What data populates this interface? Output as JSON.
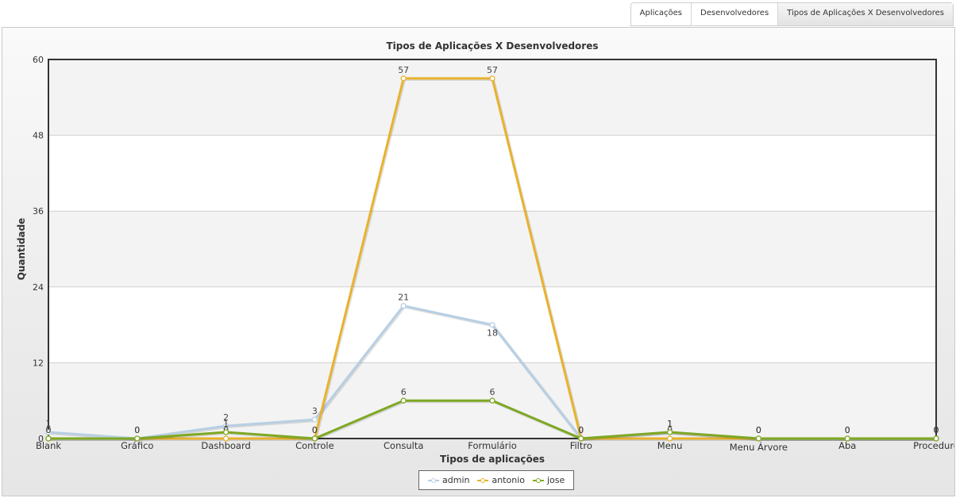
{
  "tabs": [
    {
      "label": "Aplicações",
      "active": false
    },
    {
      "label": "Desenvolvedores",
      "active": false
    },
    {
      "label": "Tipos de Aplicações X Desenvolvedores",
      "active": true
    }
  ],
  "chart_data": {
    "type": "line",
    "title": "Tipos de Aplicações X Desenvolvedores",
    "xlabel": "Tipos de aplicações",
    "ylabel": "Quantidade",
    "ylim": [
      0,
      60
    ],
    "yticks": [
      0,
      12,
      24,
      36,
      48,
      60
    ],
    "categories": [
      "Blank",
      "Gráfico",
      "Dashboard",
      "Controle",
      "Consulta",
      "Formulário",
      "Filtro",
      "Menu",
      "Menu Árvore",
      "Aba",
      "Procedure"
    ],
    "series": [
      {
        "name": "admin",
        "color": "#b8cfe3",
        "values": [
          1,
          0,
          2,
          3,
          21,
          18,
          0,
          1,
          0,
          0,
          0
        ]
      },
      {
        "name": "antonio",
        "color": "#e8b22e",
        "values": [
          0,
          0,
          0,
          0,
          57,
          57,
          0,
          0,
          0,
          0,
          0
        ]
      },
      {
        "name": "jose",
        "color": "#7ea823",
        "values": [
          0,
          0,
          1,
          0,
          6,
          6,
          0,
          1,
          0,
          0,
          0
        ]
      }
    ],
    "legend_position": "bottom-center",
    "grid": true
  }
}
